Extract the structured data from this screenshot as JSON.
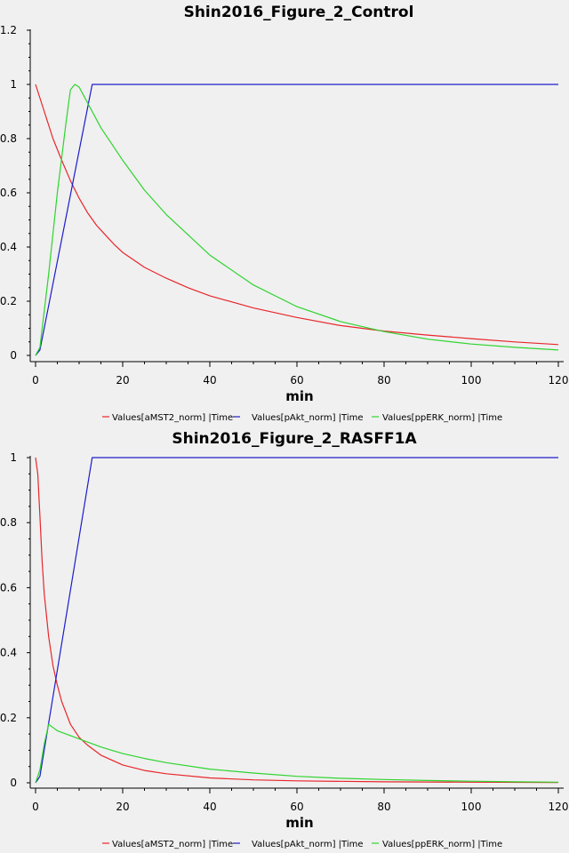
{
  "chart_data": [
    {
      "type": "line",
      "title": "Shin2016_Figure_2_Control",
      "xlabel": "min",
      "ylabel": "",
      "xlim": [
        0,
        120
      ],
      "ylim": [
        0,
        1.2
      ],
      "xticks": [
        "0",
        "20",
        "40",
        "60",
        "80",
        "100",
        "120"
      ],
      "yticks": [
        "0",
        "0.2",
        "0.4",
        "0.6",
        "0.8",
        "1",
        "1.2"
      ],
      "grid": false,
      "legend": "bottom",
      "series": [
        {
          "name": "Values[aMST2_norm] |Time",
          "color": "#e8262b",
          "x": [
            0,
            2,
            4,
            6,
            8,
            10,
            12,
            14,
            16,
            18,
            20,
            25,
            30,
            35,
            40,
            50,
            60,
            70,
            80,
            90,
            100,
            110,
            120
          ],
          "y": [
            1,
            0.9,
            0.8,
            0.72,
            0.645,
            0.58,
            0.525,
            0.48,
            0.445,
            0.41,
            0.38,
            0.325,
            0.285,
            0.25,
            0.22,
            0.175,
            0.14,
            0.11,
            0.09,
            0.075,
            0.062,
            0.05,
            0.04
          ]
        },
        {
          "name": "Values[pAkt_norm] |Time",
          "color": "#1c1ccc",
          "x": [
            0,
            1,
            13,
            20,
            40,
            60,
            80,
            100,
            120
          ],
          "y": [
            0,
            0.02,
            1,
            1,
            1,
            1,
            1,
            1,
            1
          ]
        },
        {
          "name": "Values[ppERK_norm] |Time",
          "color": "#2ed42e",
          "x": [
            0,
            1,
            3,
            5,
            7,
            8,
            9,
            10,
            12,
            15,
            20,
            25,
            30,
            40,
            50,
            60,
            70,
            80,
            90,
            100,
            110,
            120
          ],
          "y": [
            0,
            0.03,
            0.3,
            0.6,
            0.86,
            0.98,
            1,
            0.99,
            0.93,
            0.84,
            0.72,
            0.61,
            0.52,
            0.37,
            0.26,
            0.18,
            0.125,
            0.088,
            0.06,
            0.042,
            0.03,
            0.02
          ]
        }
      ]
    },
    {
      "type": "line",
      "title": "Shin2016_Figure_2_RASFF1A",
      "xlabel": "min",
      "ylabel": "",
      "xlim": [
        0,
        120
      ],
      "ylim": [
        0,
        1
      ],
      "xticks": [
        "0",
        "20",
        "40",
        "60",
        "80",
        "100",
        "120"
      ],
      "yticks": [
        "0",
        "0.2",
        "0.4",
        "0.6",
        "0.8",
        "1"
      ],
      "grid": false,
      "legend": "bottom",
      "series": [
        {
          "name": "Values[aMST2_norm] |Time",
          "color": "#e8262b",
          "x": [
            0,
            0.5,
            1,
            1.5,
            2,
            3,
            4,
            5,
            6,
            8,
            10,
            12,
            15,
            20,
            25,
            30,
            40,
            50,
            60,
            80,
            100,
            120
          ],
          "y": [
            1,
            0.95,
            0.82,
            0.68,
            0.58,
            0.45,
            0.36,
            0.3,
            0.25,
            0.18,
            0.14,
            0.115,
            0.085,
            0.055,
            0.038,
            0.028,
            0.015,
            0.009,
            0.006,
            0.003,
            0.002,
            0.001
          ]
        },
        {
          "name": "Values[pAkt_norm] |Time",
          "color": "#1c1ccc",
          "x": [
            0,
            1,
            13,
            20,
            40,
            60,
            80,
            100,
            120
          ],
          "y": [
            0,
            0.02,
            1,
            1,
            1,
            1,
            1,
            1,
            1
          ]
        },
        {
          "name": "Values[ppERK_norm] |Time",
          "color": "#2ed42e",
          "x": [
            0,
            1,
            2,
            3,
            4,
            5,
            7,
            10,
            15,
            20,
            25,
            30,
            40,
            50,
            60,
            70,
            80,
            90,
            100,
            110,
            120
          ],
          "y": [
            0,
            0.04,
            0.12,
            0.18,
            0.17,
            0.16,
            0.15,
            0.135,
            0.11,
            0.09,
            0.075,
            0.062,
            0.042,
            0.03,
            0.02,
            0.014,
            0.01,
            0.007,
            0.005,
            0.003,
            0.002
          ]
        }
      ]
    }
  ]
}
